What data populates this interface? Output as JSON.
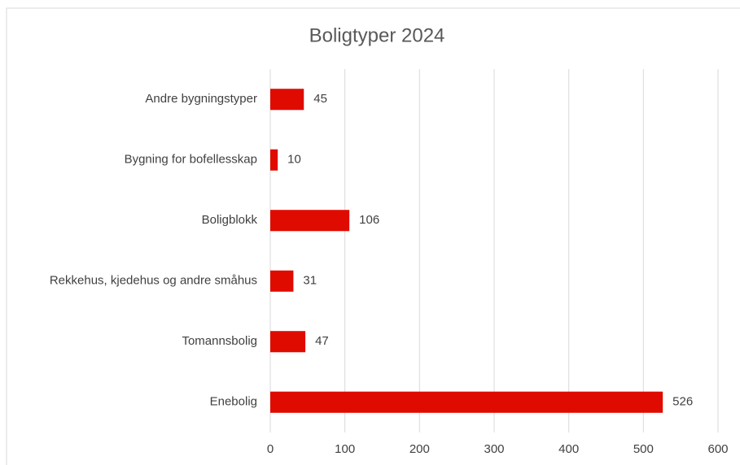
{
  "chart_data": {
    "type": "bar",
    "orientation": "horizontal",
    "title": "Boligtyper 2024",
    "categories": [
      "Andre bygningstyper",
      "Bygning for bofellesskap",
      "Boligblokk",
      "Rekkehus, kjedehus og andre småhus",
      "Tomannsbolig",
      "Enebolig"
    ],
    "values": [
      45,
      10,
      106,
      31,
      47,
      526
    ],
    "color": "#e00b00",
    "xlim": [
      0,
      600
    ],
    "xticks": [
      0,
      100,
      200,
      300,
      400,
      500,
      600
    ],
    "grid": true
  }
}
